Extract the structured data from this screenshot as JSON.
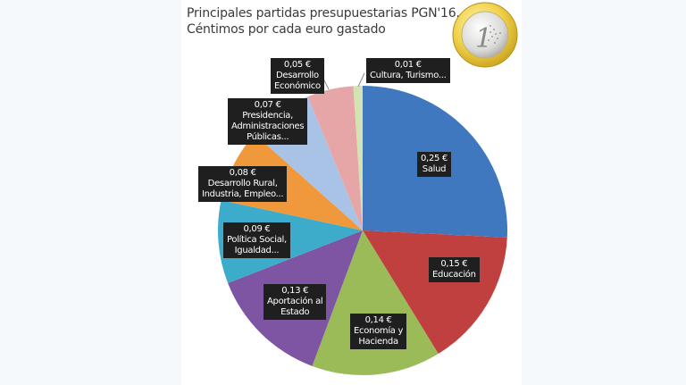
{
  "title": {
    "line1": "Principales partidas presupuestarias PGN'16.",
    "line2": "Céntimos por cada euro gastado"
  },
  "decor": {
    "icon": "euro-coin-icon",
    "coin_text": "1"
  },
  "colors": {
    "background": "#f5f9fc",
    "panel": "#ffffff",
    "label_bg": "#1f1f1f"
  },
  "chart_data": {
    "type": "pie",
    "title": "Principales partidas presupuestarias PGN'16. Céntimos por cada euro gastado",
    "unit": "€",
    "start_angle": "12 o'clock, clockwise",
    "categories": [
      "Salud",
      "Educación",
      "Economía y Hacienda",
      "Aportación al Estado",
      "Política Social, Igualdad...",
      "Desarrollo Rural, Industria, Empleo...",
      "Presidencia, Administraciones Públicas...",
      "Desarrollo Económico",
      "Cultura, Turismo..."
    ],
    "values": [
      0.25,
      0.15,
      0.14,
      0.13,
      0.09,
      0.08,
      0.07,
      0.05,
      0.01
    ],
    "value_labels": [
      "0,25 €",
      "0,15 €",
      "0,14 €",
      "0,13 €",
      "0,09 €",
      "0,08 €",
      "0,07 €",
      "0,05 €",
      "0,01 €"
    ],
    "colors": [
      "#4078c0",
      "#c0403f",
      "#9bbb59",
      "#7d55a3",
      "#3daccb",
      "#f0993c",
      "#a9c3e7",
      "#e6a6a7",
      "#d3e3b3"
    ],
    "legend": "none (data labels with callouts)"
  },
  "labels": [
    {
      "value": "0,25 €",
      "lines": [
        "Salud"
      ]
    },
    {
      "value": "0,15 €",
      "lines": [
        "Educación"
      ]
    },
    {
      "value": "0,14 €",
      "lines": [
        "Economía y",
        "Hacienda"
      ]
    },
    {
      "value": "0,13 €",
      "lines": [
        "Aportación al",
        "Estado"
      ]
    },
    {
      "value": "0,09 €",
      "lines": [
        "Política Social,",
        "Igualdad..."
      ]
    },
    {
      "value": "0,08 €",
      "lines": [
        "Desarrollo Rural,",
        "Industria, Empleo..."
      ]
    },
    {
      "value": "0,07 €",
      "lines": [
        "Presidencia,",
        "Administraciones",
        "Públicas..."
      ]
    },
    {
      "value": "0,05 €",
      "lines": [
        "Desarrollo",
        "Económico"
      ]
    },
    {
      "value": "0,01 €",
      "lines": [
        "Cultura, Turismo..."
      ]
    }
  ]
}
